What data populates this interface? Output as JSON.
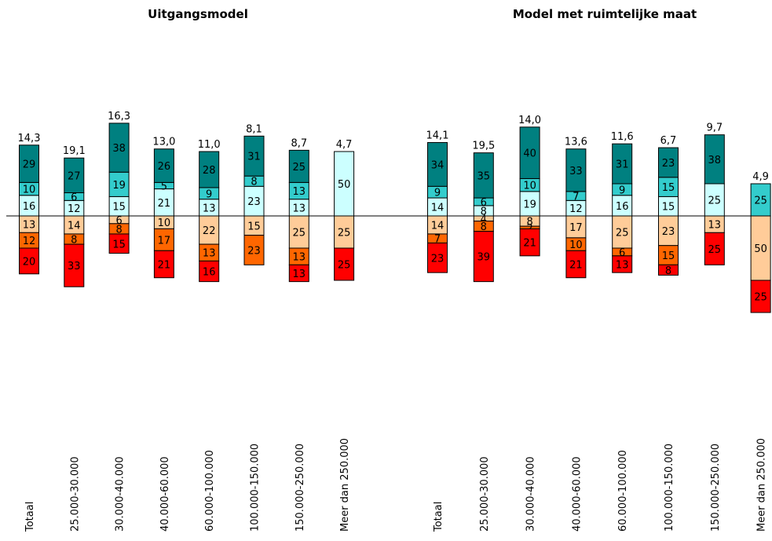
{
  "chart_data": [
    {
      "type": "bar",
      "title": "Uitgangsmodel",
      "categories": [
        "Totaal",
        "25.000-30.000",
        "30.000-40.000",
        "40.000-60.000",
        "60.000-100.000",
        "100.000-150.000",
        "150.000-250.000",
        "Meer dan 250.000"
      ],
      "totals": [
        "14,3",
        "19,1",
        "16,3",
        "13,0",
        "11,0",
        "8,1",
        "8,7",
        "4,7"
      ],
      "positive_segments": [
        [
          {
            "v": 16,
            "c": "light-cyan"
          },
          {
            "v": 10,
            "c": "cyan"
          },
          {
            "v": 29,
            "c": "teal"
          }
        ],
        [
          {
            "v": 12,
            "c": "light-cyan"
          },
          {
            "v": 6,
            "c": "cyan"
          },
          {
            "v": 27,
            "c": "teal"
          }
        ],
        [
          {
            "v": 15,
            "c": "light-cyan"
          },
          {
            "v": 19,
            "c": "cyan"
          },
          {
            "v": 38,
            "c": "teal"
          }
        ],
        [
          {
            "v": 21,
            "c": "light-cyan"
          },
          {
            "v": 5,
            "c": "cyan"
          },
          {
            "v": 26,
            "c": "teal"
          }
        ],
        [
          {
            "v": 13,
            "c": "light-cyan"
          },
          {
            "v": 9,
            "c": "cyan"
          },
          {
            "v": 28,
            "c": "teal"
          }
        ],
        [
          {
            "v": 23,
            "c": "light-cyan"
          },
          {
            "v": 8,
            "c": "cyan"
          },
          {
            "v": 31,
            "c": "teal"
          }
        ],
        [
          {
            "v": 13,
            "c": "light-cyan"
          },
          {
            "v": 13,
            "c": "cyan"
          },
          {
            "v": 25,
            "c": "teal"
          }
        ],
        [
          {
            "v": 50,
            "c": "light-cyan"
          }
        ]
      ],
      "negative_segments": [
        [
          {
            "v": 13,
            "c": "peach"
          },
          {
            "v": 12,
            "c": "orange"
          },
          {
            "v": 20,
            "c": "red"
          }
        ],
        [
          {
            "v": 14,
            "c": "peach"
          },
          {
            "v": 8,
            "c": "orange"
          },
          {
            "v": 33,
            "c": "red"
          }
        ],
        [
          {
            "v": 6,
            "c": "peach"
          },
          {
            "v": 8,
            "c": "orange"
          },
          {
            "v": 15,
            "c": "red"
          }
        ],
        [
          {
            "v": 10,
            "c": "peach"
          },
          {
            "v": 17,
            "c": "orange"
          },
          {
            "v": 21,
            "c": "red"
          }
        ],
        [
          {
            "v": 22,
            "c": "peach"
          },
          {
            "v": 13,
            "c": "orange"
          },
          {
            "v": 16,
            "c": "red"
          }
        ],
        [
          {
            "v": 15,
            "c": "peach"
          },
          {
            "v": 23,
            "c": "orange"
          }
        ],
        [
          {
            "v": 25,
            "c": "peach"
          },
          {
            "v": 13,
            "c": "orange"
          },
          {
            "v": 13,
            "c": "red"
          }
        ],
        [
          {
            "v": 25,
            "c": "peach"
          },
          {
            "v": 25,
            "c": "red"
          }
        ]
      ]
    },
    {
      "type": "bar",
      "title": "Model met ruimtelijke maat",
      "categories": [
        "Totaal",
        "25.000-30.000",
        "30.000-40.000",
        "40.000-60.000",
        "60.000-100.000",
        "100.000-150.000",
        "150.000-250.000",
        "Meer dan 250.000"
      ],
      "totals": [
        "14,1",
        "19,5",
        "14,0",
        "13,6",
        "11,6",
        "6,7",
        "9,7",
        "4,9"
      ],
      "positive_segments": [
        [
          {
            "v": 14,
            "c": "light-cyan"
          },
          {
            "v": 9,
            "c": "cyan"
          },
          {
            "v": 34,
            "c": "teal"
          }
        ],
        [
          {
            "v": 8,
            "c": "light-cyan"
          },
          {
            "v": 6,
            "c": "cyan"
          },
          {
            "v": 35,
            "c": "teal"
          }
        ],
        [
          {
            "v": 19,
            "c": "light-cyan"
          },
          {
            "v": 10,
            "c": "cyan"
          },
          {
            "v": 40,
            "c": "teal"
          }
        ],
        [
          {
            "v": 12,
            "c": "light-cyan"
          },
          {
            "v": 7,
            "c": "cyan"
          },
          {
            "v": 33,
            "c": "teal"
          }
        ],
        [
          {
            "v": 16,
            "c": "light-cyan"
          },
          {
            "v": 9,
            "c": "cyan"
          },
          {
            "v": 31,
            "c": "teal"
          }
        ],
        [
          {
            "v": 15,
            "c": "light-cyan"
          },
          {
            "v": 15,
            "c": "cyan"
          },
          {
            "v": 23,
            "c": "teal"
          }
        ],
        [
          {
            "v": 25,
            "c": "light-cyan"
          },
          {
            "v": 38,
            "c": "teal"
          }
        ],
        [
          {
            "v": 25,
            "c": "cyan"
          }
        ]
      ],
      "negative_segments": [
        [
          {
            "v": 14,
            "c": "peach"
          },
          {
            "v": 7,
            "c": "orange"
          },
          {
            "v": 23,
            "c": "red"
          }
        ],
        [
          {
            "v": 4,
            "c": "peach"
          },
          {
            "v": 8,
            "c": "orange"
          },
          {
            "v": 39,
            "c": "red"
          }
        ],
        [
          {
            "v": 8,
            "c": "peach"
          },
          {
            "v": 2,
            "c": "orange"
          },
          {
            "v": 21,
            "c": "red"
          }
        ],
        [
          {
            "v": 17,
            "c": "peach"
          },
          {
            "v": 10,
            "c": "orange"
          },
          {
            "v": 21,
            "c": "red"
          }
        ],
        [
          {
            "v": 25,
            "c": "peach"
          },
          {
            "v": 6,
            "c": "orange"
          },
          {
            "v": 13,
            "c": "red"
          }
        ],
        [
          {
            "v": 23,
            "c": "peach"
          },
          {
            "v": 15,
            "c": "orange"
          },
          {
            "v": 8,
            "c": "red"
          }
        ],
        [
          {
            "v": 13,
            "c": "peach"
          },
          {
            "v": 25,
            "c": "red"
          }
        ],
        [
          {
            "v": 50,
            "c": "peach"
          },
          {
            "v": 25,
            "c": "red"
          }
        ]
      ]
    }
  ],
  "colors": {
    "light-cyan": "#ccffff",
    "cyan": "#33cccc",
    "teal": "#008080",
    "peach": "#ffcc99",
    "orange": "#ff6600",
    "red": "#ff0000",
    "axis": "#000000"
  }
}
